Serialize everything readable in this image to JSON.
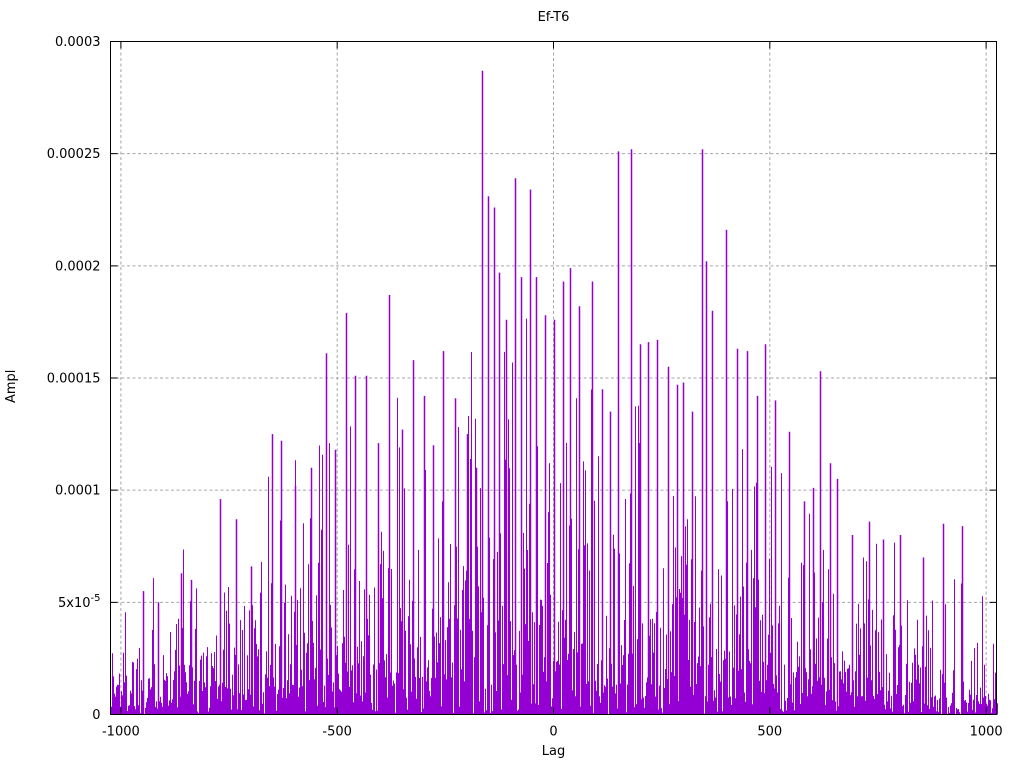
{
  "chart_data": {
    "type": "impulse",
    "title": "Ef-T6",
    "xlabel": "Lag",
    "ylabel": "Ampl",
    "xlim": [
      -1024,
      1024
    ],
    "ylim": [
      0,
      0.0003
    ],
    "grid": true,
    "legend": "none",
    "colors": {
      "series": "#9400d3",
      "grid": "#a6a6a6",
      "border": "#000000",
      "background": "#ffffff",
      "text": "#000000"
    },
    "xticks": [
      {
        "value": -1000,
        "label": "-1000"
      },
      {
        "value": -500,
        "label": "-500"
      },
      {
        "value": 0,
        "label": "0"
      },
      {
        "value": 500,
        "label": "500"
      },
      {
        "value": 1000,
        "label": "1000"
      }
    ],
    "yticks": [
      {
        "value": 0,
        "label": "0"
      },
      {
        "value": 5e-05,
        "label": "5x10",
        "sup": "-5"
      },
      {
        "value": 0.0001,
        "label": "0.0001"
      },
      {
        "value": 0.00015,
        "label": "0.00015"
      },
      {
        "value": 0.0002,
        "label": "0.0002"
      },
      {
        "value": 0.00025,
        "label": "0.00025"
      },
      {
        "value": 0.0003,
        "label": "0.0003"
      }
    ],
    "peaks": [
      [
        -950,
        5.5e-05
      ],
      [
        -915,
        5e-05
      ],
      [
        -860,
        6.3e-05
      ],
      [
        -838,
        6e-05
      ],
      [
        -770,
        9.6e-05
      ],
      [
        -735,
        8.7e-05
      ],
      [
        -700,
        6.6e-05
      ],
      [
        -650,
        0.000125
      ],
      [
        -630,
        0.000122
      ],
      [
        -598,
        0.000102
      ],
      [
        -560,
        0.00011
      ],
      [
        -525,
        0.000161
      ],
      [
        -505,
        0.000118
      ],
      [
        -480,
        0.000179
      ],
      [
        -458,
        0.000151
      ],
      [
        -433,
        0.000151
      ],
      [
        -405,
        0.000121
      ],
      [
        -380,
        0.000187
      ],
      [
        -350,
        0.000127
      ],
      [
        -325,
        0.000158
      ],
      [
        -300,
        0.000142
      ],
      [
        -278,
        0.00012
      ],
      [
        -255,
        0.000162
      ],
      [
        -228,
        0.000141
      ],
      [
        -200,
        0.000125
      ],
      [
        -180,
        0.00011
      ],
      [
        -165,
        0.000287
      ],
      [
        -152,
        0.000231
      ],
      [
        -138,
        0.000226
      ],
      [
        -125,
        0.000197
      ],
      [
        -110,
        0.000176
      ],
      [
        -90,
        0.000239
      ],
      [
        -75,
        0.000195
      ],
      [
        -55,
        0.000234
      ],
      [
        -40,
        0.000195
      ],
      [
        -20,
        0.000178
      ],
      [
        0,
        0.000176
      ],
      [
        22,
        0.000193
      ],
      [
        38,
        0.000199
      ],
      [
        60,
        0.000182
      ],
      [
        90,
        0.000193
      ],
      [
        112,
        0.000145
      ],
      [
        130,
        0.000135
      ],
      [
        150,
        0.000251
      ],
      [
        180,
        0.000252
      ],
      [
        200,
        0.000165
      ],
      [
        218,
        0.000166
      ],
      [
        240,
        0.000167
      ],
      [
        265,
        0.000155
      ],
      [
        285,
        0.000147
      ],
      [
        300,
        0.000148
      ],
      [
        320,
        0.000135
      ],
      [
        343,
        0.000252
      ],
      [
        352,
        0.000202
      ],
      [
        367,
        0.00018
      ],
      [
        398,
        0.000216
      ],
      [
        425,
        0.000163
      ],
      [
        447,
        0.000162
      ],
      [
        470,
        0.000142
      ],
      [
        490,
        0.000165
      ],
      [
        512,
        0.00014
      ],
      [
        545,
        0.000126
      ],
      [
        578,
        9.5e-05
      ],
      [
        600,
        0.000101
      ],
      [
        617,
        0.000153
      ],
      [
        638,
        0.000112
      ],
      [
        655,
        0.000105
      ],
      [
        690,
        8e-05
      ],
      [
        730,
        8.6e-05
      ],
      [
        762,
        7.8e-05
      ],
      [
        800,
        8e-05
      ],
      [
        855,
        7e-05
      ],
      [
        900,
        8.5e-05
      ],
      [
        945,
        8.4e-05
      ]
    ],
    "noise": {
      "seed": 1337,
      "step": 2,
      "mean": 0.29,
      "clip": 1.12,
      "floor": 4.6e-05,
      "peak": 0.000112,
      "center": -60,
      "halfwidth": 1060
    }
  }
}
